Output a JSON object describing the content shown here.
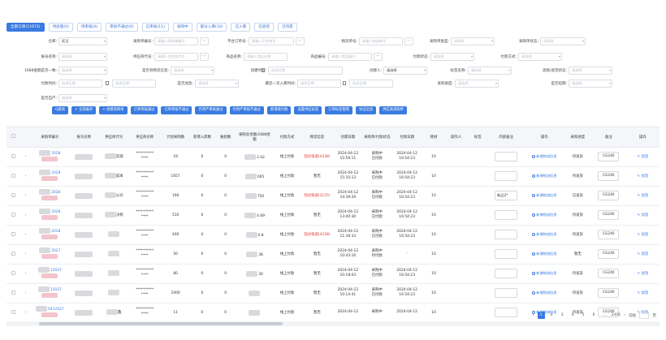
{
  "tabs": [
    {
      "label": "全部订单(11672)",
      "active": true
    },
    {
      "label": "待处理(0)"
    },
    {
      "label": "待审核(0)"
    },
    {
      "label": "审核不通过(0)"
    },
    {
      "label": "已审核(11)"
    },
    {
      "label": "采购中"
    },
    {
      "label": "部分入库(33)"
    },
    {
      "label": "已入库"
    },
    {
      "label": "已退货"
    },
    {
      "label": "已作废"
    }
  ],
  "filters": {
    "warehouse_label": "仓库:",
    "warehouse_value": "武汉",
    "purchase_no_label": "采购单编号:",
    "purchase_no_ph": "请输入采购单编号",
    "platform_order_label": "平台订单号:",
    "platform_order_ph": "请输入平台单号",
    "logistics_no_label": "物流单号:",
    "logistics_no_ph": "请输入物流单号",
    "purchase_type_label": "采购单类型:",
    "purchase_type_ph": "请选择",
    "purchase_status_label": "采购单状态:",
    "purchase_status_ph": "请选择",
    "account_label": "账号名称:",
    "account_ph": "请选择",
    "supplier_code_label": "供应商代号:",
    "supplier_code_ph": "请输入供应商代号",
    "product_name_label": "商品名称:",
    "product_name_ph": "请输入商品名称",
    "product_no_label": "商品编号:",
    "product_no_ph": "请输入商品编号",
    "pay_status_label": "付款状态:",
    "pay_status_ph": "请选择",
    "pay_method_label": "付款方式:",
    "pay_method_ph": "请选择",
    "alibaba_consistent_label": "1688金额是否一致:",
    "alibaba_consistent_ph": "请选择",
    "has_logistics_label": "是否有物流信息:",
    "has_logistics_ph": "请选择",
    "created_time_label": "创建时间:",
    "created_time_ph": "选择日期",
    "creator_label": "创建人:",
    "creator_value": "请选择",
    "tag_label": "标签名称:",
    "tag_ph": "请选择",
    "return_status_label": "退款/退货状态:",
    "return_status_ph": "请选择",
    "pay_time_label": "付款时间:",
    "pay_time_ph": "选择日期",
    "is_urgent_label": "是否加急:",
    "is_urgent_ph": "请选择",
    "last_inbound_label": "最近一次入库时间:",
    "last_inbound_ph": "选择日期",
    "progress_label": "采购进度:",
    "progress_ph": "请选择",
    "is_delayed_label": "是否延期:",
    "is_delayed_ph": "请选择",
    "is_own_label": "是否自产:",
    "is_own_ph": "请选择"
  },
  "actions": [
    "Q查询",
    "+ 全部展开",
    "+ 创建采购单",
    "订单审核通过",
    "订单审核不通过",
    "仍然严审核通过",
    "仍然严审核不通过",
    "新增退付款",
    "设置供应标签",
    "订单标签管理",
    "导出信息",
    "供应商采购单"
  ],
  "table": {
    "headers": [
      "",
      "",
      "采购单编号",
      "账号名称",
      "供应商代号",
      "供应商名称",
      "计划采购数",
      "新增入库数",
      "报损数",
      "采购总金额/1688金额",
      "付款方式",
      "物流信息",
      "创建日期",
      "采购单/付款状态",
      "付款日期",
      "耗材",
      "操作人",
      "标签",
      "内部备注",
      "操作",
      "采购进度",
      "备注",
      "操作"
    ],
    "rows": [
      {
        "no": "2028",
        "supplier": "货源",
        "qty": "18",
        "inbound": "0",
        "loss": "0",
        "amount": "2.02",
        "pay": "线上付款",
        "logi": "韵达快递(4338)",
        "logi_red": true,
        "date": "2024-04-12",
        "time": "15:59:11",
        "status": "采购中",
        "status2": "已付款",
        "pdate": "2024-04-12",
        "ptime": "16:54:23",
        "mat": "10",
        "note": "",
        "progress": "待发货",
        "code": "CG240"
      },
      {
        "no": "2028",
        "supplier": "成本",
        "qty": "1657",
        "inbound": "0",
        "loss": "0",
        "amount": "065",
        "pay": "线上付款",
        "logi": "暂无",
        "logi_red": false,
        "date": "2024-04-12",
        "time": "15:35:13",
        "status": "采购中",
        "status2": "已付款",
        "pdate": "2024-04-12",
        "ptime": "16:54:23",
        "mat": "10",
        "note": "",
        "progress": "待发货",
        "code": "CG240"
      },
      {
        "no": "2028",
        "supplier": "公司",
        "qty": "190",
        "inbound": "0",
        "loss": "0",
        "amount": "750",
        "pay": "线上付款",
        "logi": "韵达快递(3125)",
        "logi_red": true,
        "date": "2024-04-12",
        "time": "14:39:29",
        "status": "采购中",
        "status2": "已付款",
        "pdate": "2024-04-12",
        "ptime": "16:54:23",
        "mat": "10",
        "note": "新品3*",
        "progress": "已发货",
        "code": "CG240"
      },
      {
        "no": "2028",
        "supplier": "决修",
        "qty": "510",
        "inbound": "0",
        "loss": "0",
        "amount": "4.69",
        "pay": "线上付款",
        "logi": "暂无",
        "logi_red": false,
        "date": "2024-04-12",
        "time": "13:40:30",
        "status": "采购中",
        "status2": "已付款",
        "pdate": "2024-04-12",
        "ptime": "16:54:23",
        "mat": "10",
        "note": "",
        "progress": "待发货",
        "code": "CG240"
      },
      {
        "no": "2028",
        "supplier": "",
        "qty": "400",
        "inbound": "0",
        "loss": "0",
        "amount": "4.8",
        "pay": "线上付款",
        "logi": "韵达快递(4338)",
        "logi_red": true,
        "date": "2024-04-12",
        "time": "11:39:33",
        "status": "采购中",
        "status2": "已付款",
        "pdate": "2024-04-12",
        "ptime": "16:54:23",
        "mat": "10",
        "note": "",
        "progress": "待发货",
        "code": "CG240"
      },
      {
        "no": "2027",
        "supplier": "",
        "qty": "50",
        "inbound": "0",
        "loss": "0",
        "amount": "38",
        "pay": "线上付款",
        "logi": "暂无",
        "logi_red": false,
        "date": "2024-04-12",
        "time": "10:43:16",
        "status": "采购中",
        "status2": "待付款",
        "pdate": "-",
        "ptime": "",
        "mat": "10",
        "note": "",
        "progress": "暂无",
        "code": "CG240"
      },
      {
        "no": "12027",
        "supplier": "",
        "qty": "80",
        "inbound": "0",
        "loss": "0",
        "amount": "30",
        "pay": "线上付款",
        "logi": "暂无",
        "logi_red": false,
        "date": "2024-04-12",
        "time": "10:18:03",
        "status": "采购中",
        "status2": "已付款",
        "pdate": "2024-04-12",
        "ptime": "16:54:23",
        "mat": "10",
        "note": "",
        "progress": "待发货",
        "code": "CG240"
      },
      {
        "no": "12027",
        "supplier": "",
        "qty": "1000",
        "inbound": "0",
        "loss": "0",
        "amount": "",
        "pay": "线上付款",
        "logi": "暂无",
        "logi_red": false,
        "date": "2024-04-12",
        "time": "10:14:41",
        "status": "采购中",
        "status2": "已付款",
        "pdate": "2024-04-12",
        "ptime": "16:54:23",
        "mat": "10",
        "note": "",
        "progress": "待发货",
        "code": "CG240"
      },
      {
        "no": "0412027",
        "supplier": "鑫",
        "qty": "11",
        "inbound": "0",
        "loss": "0",
        "amount": "",
        "pay": "线上付款",
        "logi": "暂无",
        "logi_red": false,
        "date": "2024-04-12",
        "time": "",
        "status": "采购中",
        "status2": "",
        "pdate": "2024-04-12",
        "ptime": "",
        "mat": "10",
        "note": "",
        "progress": "待发货",
        "code": "CG240"
      }
    ],
    "supplier_name_mask": "**********",
    "supplier_name_mask2": "****",
    "add_log_label": "新增物流信息",
    "add_label": "加急"
  },
  "pager": {
    "pages": [
      "1",
      "2",
      "3",
      "4",
      "5",
      "6",
      "...",
      "2401"
    ],
    "current": "1",
    "goto_label": "前往",
    "page_unit": "页"
  }
}
